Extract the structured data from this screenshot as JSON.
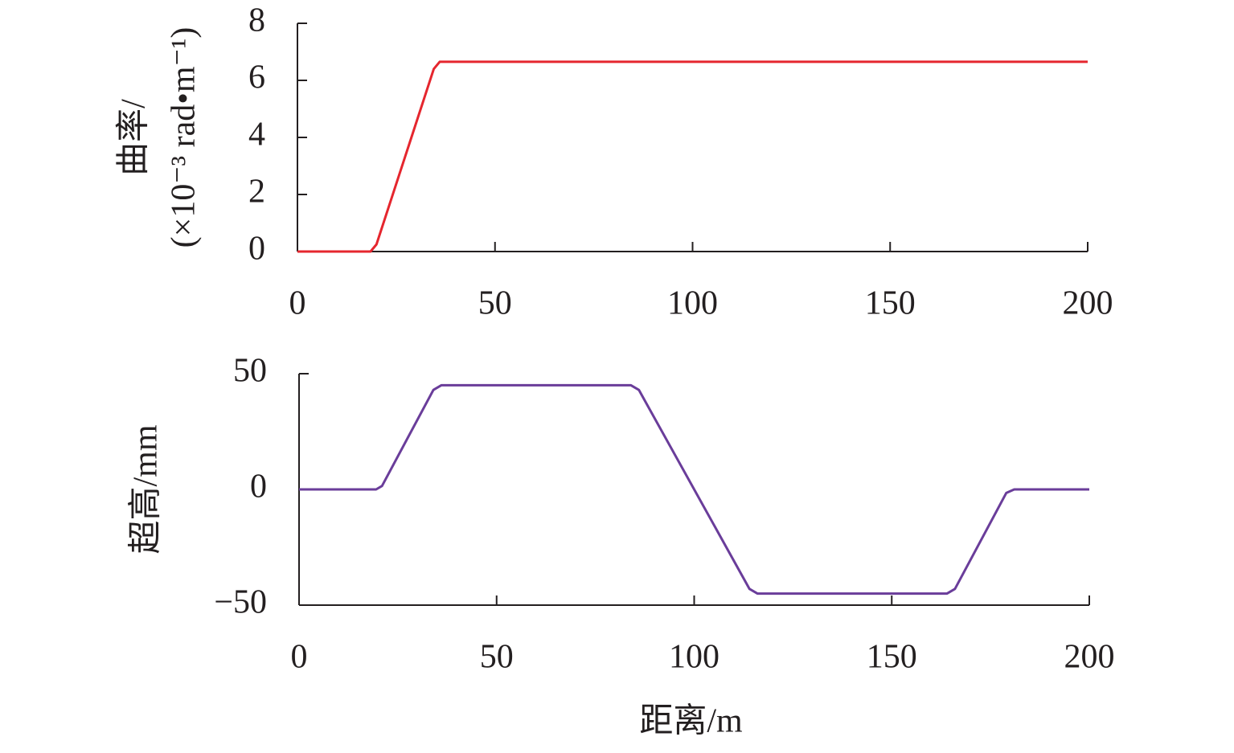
{
  "chart_data": [
    {
      "type": "line",
      "ylabel": [
        "曲率/",
        "(×10⁻³ rad•m⁻¹)"
      ],
      "x": [
        0,
        18.5,
        20,
        34.5,
        36,
        200
      ],
      "series": [
        {
          "color": "#e5262e",
          "values": [
            0,
            0,
            0.25,
            6.4,
            6.65,
            6.65
          ]
        }
      ],
      "xlim": [
        0,
        200
      ],
      "xticks": [
        0,
        50,
        100,
        150,
        200
      ],
      "ylim": [
        0,
        8
      ],
      "yticks": [
        0,
        2,
        4,
        6,
        8
      ]
    },
    {
      "type": "line",
      "ylabel": [
        "超高/mm"
      ],
      "xlabel": "距离/m",
      "x": [
        0,
        19.5,
        21,
        34,
        36,
        84,
        86,
        114,
        116,
        164,
        166,
        179,
        181,
        200
      ],
      "series": [
        {
          "color": "#6a3d9a",
          "values": [
            0,
            0,
            1.5,
            43,
            45,
            45,
            43,
            -43,
            -45,
            -45,
            -43,
            -1.5,
            0,
            0
          ]
        }
      ],
      "xlim": [
        0,
        200
      ],
      "xticks": [
        0,
        50,
        100,
        150,
        200
      ],
      "ylim": [
        -50,
        50
      ],
      "yticks": [
        {
          "value": -50,
          "label": "−50"
        },
        0,
        50
      ]
    }
  ]
}
